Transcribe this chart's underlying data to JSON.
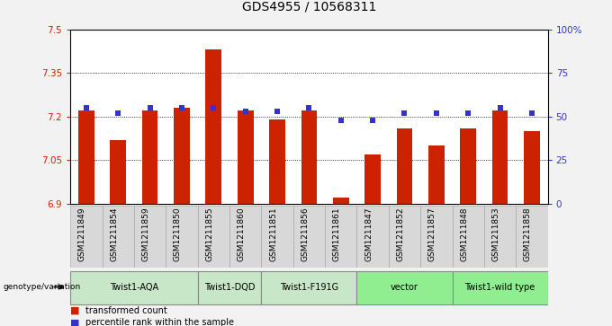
{
  "title": "GDS4955 / 10568311",
  "samples": [
    "GSM1211849",
    "GSM1211854",
    "GSM1211859",
    "GSM1211850",
    "GSM1211855",
    "GSM1211860",
    "GSM1211851",
    "GSM1211856",
    "GSM1211861",
    "GSM1211847",
    "GSM1211852",
    "GSM1211857",
    "GSM1211848",
    "GSM1211853",
    "GSM1211858"
  ],
  "bar_values": [
    7.22,
    7.12,
    7.22,
    7.23,
    7.43,
    7.22,
    7.19,
    7.22,
    6.92,
    7.07,
    7.16,
    7.1,
    7.16,
    7.22,
    7.15
  ],
  "dot_values": [
    55,
    52,
    55,
    55,
    55,
    53,
    53,
    55,
    48,
    48,
    52,
    52,
    52,
    55,
    52
  ],
  "ylim_left": [
    6.9,
    7.5
  ],
  "ylim_right": [
    0,
    100
  ],
  "yticks_left": [
    6.9,
    7.05,
    7.2,
    7.35,
    7.5
  ],
  "yticks_right": [
    0,
    25,
    50,
    75,
    100
  ],
  "ytick_labels_left": [
    "6.9",
    "7.05",
    "7.2",
    "7.35",
    "7.5"
  ],
  "ytick_labels_right": [
    "0",
    "25",
    "50",
    "75",
    "100%"
  ],
  "bar_color": "#cc2200",
  "dot_color": "#3333cc",
  "groups": [
    {
      "label": "Twist1-AQA",
      "indices": [
        0,
        1,
        2,
        3
      ],
      "color": "#c8e6c8"
    },
    {
      "label": "Twist1-DQD",
      "indices": [
        4,
        5
      ],
      "color": "#c8e6c8"
    },
    {
      "label": "Twist1-F191G",
      "indices": [
        6,
        7,
        8
      ],
      "color": "#c8e6c8"
    },
    {
      "label": "vector",
      "indices": [
        9,
        10,
        11
      ],
      "color": "#90ee90"
    },
    {
      "label": "Twist1-wild type",
      "indices": [
        12,
        13,
        14
      ],
      "color": "#90ee90"
    }
  ],
  "genotype_label": "genotype/variation",
  "legend_bar_label": "transformed count",
  "legend_dot_label": "percentile rank within the sample",
  "bg_color": "#f2f2f2",
  "plot_bg": "#ffffff",
  "cell_bg": "#d8d8d8",
  "grid_color": "#000000",
  "left_tick_color": "#cc2200",
  "right_tick_color": "#3333cc",
  "title_fontsize": 10,
  "tick_fontsize": 7.5,
  "label_fontsize": 6.5,
  "bar_width": 0.5
}
